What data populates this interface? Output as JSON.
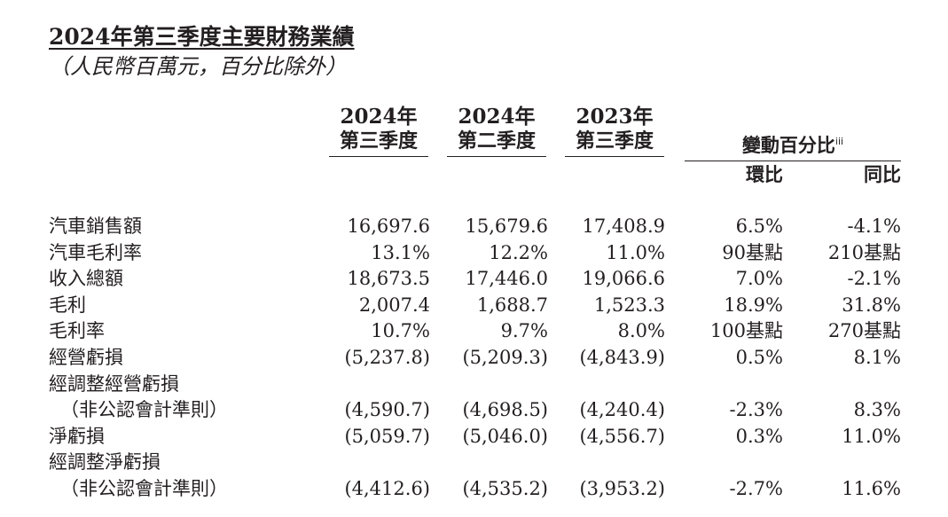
{
  "header": {
    "title": "2024年第三季度主要財務業績",
    "subtitle": "（人民幣百萬元，百分比除外）"
  },
  "columns": {
    "q3_2024": {
      "line1": "2024年",
      "line2": "第三季度"
    },
    "q2_2024": {
      "line1": "2024年",
      "line2": "第二季度"
    },
    "q3_2023": {
      "line1": "2023年",
      "line2": "第三季度"
    },
    "change": {
      "label": "變動百分比",
      "note": "iii",
      "qoq": "環比",
      "yoy": "同比"
    }
  },
  "rows": [
    {
      "label": "汽車銷售額",
      "q3_2024": "16,697.6",
      "q2_2024": "15,679.6",
      "q3_2023": "17,408.9",
      "qoq": "6.5%",
      "yoy": "-4.1%"
    },
    {
      "label": "汽車毛利率",
      "q3_2024": "13.1%",
      "q2_2024": "12.2%",
      "q3_2023": "11.0%",
      "qoq": "90基點",
      "yoy": "210基點"
    },
    {
      "label": "收入總額",
      "q3_2024": "18,673.5",
      "q2_2024": "17,446.0",
      "q3_2023": "19,066.6",
      "qoq": "7.0%",
      "yoy": "-2.1%"
    },
    {
      "label": "毛利",
      "q3_2024": "2,007.4",
      "q2_2024": "1,688.7",
      "q3_2023": "1,523.3",
      "qoq": "18.9%",
      "yoy": "31.8%"
    },
    {
      "label": "毛利率",
      "q3_2024": "10.7%",
      "q2_2024": "9.7%",
      "q3_2023": "8.0%",
      "qoq": "100基點",
      "yoy": "270基點"
    },
    {
      "label": "經營虧損",
      "q3_2024": "(5,237.8)",
      "q2_2024": "(5,209.3)",
      "q3_2023": "(4,843.9)",
      "qoq": "0.5%",
      "yoy": "8.1%"
    },
    {
      "label": "經調整經營虧損",
      "q3_2024": "",
      "q2_2024": "",
      "q3_2023": "",
      "qoq": "",
      "yoy": ""
    },
    {
      "label": "（非公認會計準則）",
      "q3_2024": "(4,590.7)",
      "q2_2024": "(4,698.5)",
      "q3_2023": "(4,240.4)",
      "qoq": "-2.3%",
      "yoy": "8.3%"
    },
    {
      "label": "淨虧損",
      "q3_2024": "(5,059.7)",
      "q2_2024": "(5,046.0)",
      "q3_2023": "(4,556.7)",
      "qoq": "0.3%",
      "yoy": "11.0%"
    },
    {
      "label": "經調整淨虧損",
      "q3_2024": "",
      "q2_2024": "",
      "q3_2023": "",
      "qoq": "",
      "yoy": ""
    },
    {
      "label": "（非公認會計準則）",
      "q3_2024": "(4,412.6)",
      "q2_2024": "(4,535.2)",
      "q3_2023": "(3,953.2)",
      "qoq": "-2.7%",
      "yoy": "11.6%"
    }
  ]
}
